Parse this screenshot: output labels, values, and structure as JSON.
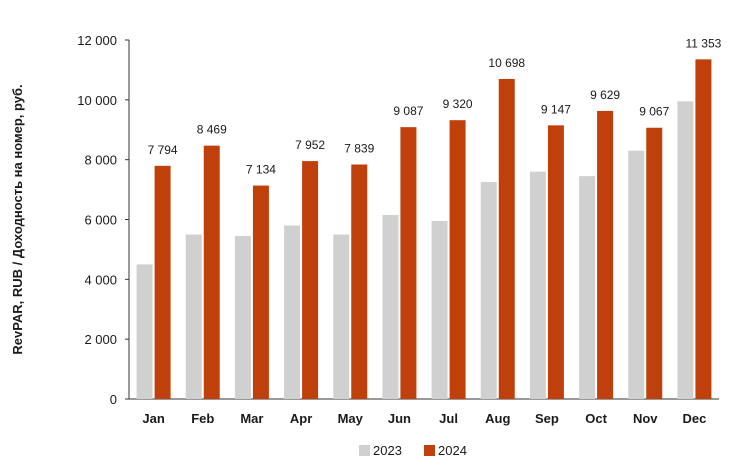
{
  "chart_data": {
    "type": "bar",
    "ylabel": "RevPAR, RUB / Доходность на номер, руб.",
    "ylim": [
      0,
      12000
    ],
    "ytick_values": [
      0,
      2000,
      4000,
      6000,
      8000,
      10000,
      12000
    ],
    "ytick_labels": [
      "0",
      "2 000",
      "4 000",
      "6 000",
      "8 000",
      "10 000",
      "12 000"
    ],
    "categories": [
      "Jan",
      "Feb",
      "Mar",
      "Apr",
      "May",
      "Jun",
      "Jul",
      "Aug",
      "Sep",
      "Oct",
      "Nov",
      "Dec"
    ],
    "series": [
      {
        "name": "2023",
        "color": "#d0d0d0",
        "values": [
          4500,
          5500,
          5450,
          5800,
          5500,
          6150,
          5950,
          7250,
          7600,
          7450,
          8300,
          9950
        ]
      },
      {
        "name": "2024",
        "color": "#c0400b",
        "values": [
          7794,
          8469,
          7134,
          7952,
          7839,
          9087,
          9320,
          10698,
          9147,
          9629,
          9067,
          11353
        ],
        "labels": [
          "7 794",
          "8 469",
          "7 134",
          "7 952",
          "7 839",
          "9 087",
          "9 320",
          "10 698",
          "9 147",
          "9 629",
          "9 067",
          "11 353"
        ]
      }
    ],
    "legend_position": "bottom-center",
    "grid": false
  }
}
